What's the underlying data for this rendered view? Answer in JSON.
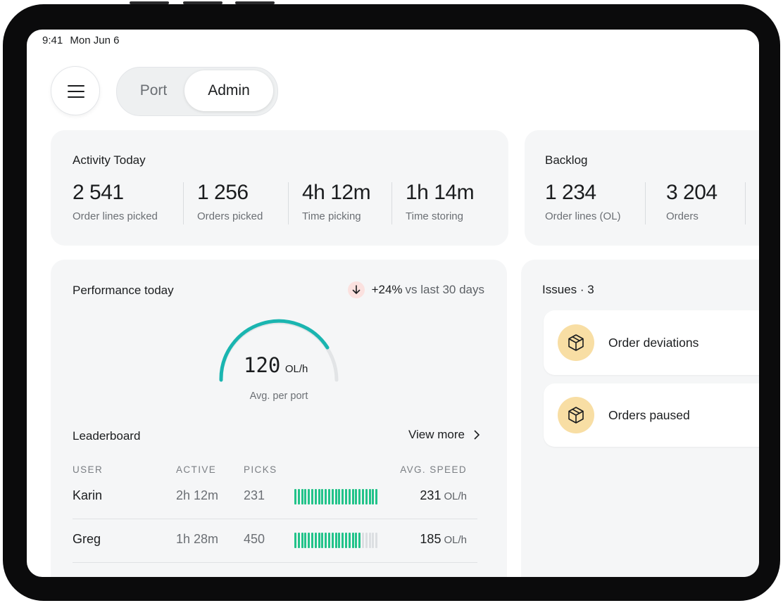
{
  "status_bar": {
    "time": "9:41",
    "date": "Mon Jun 6"
  },
  "tabs": [
    {
      "label": "Port",
      "active": false
    },
    {
      "label": "Admin",
      "active": true
    }
  ],
  "activity": {
    "title": "Activity Today",
    "stats": [
      {
        "value": "2 541",
        "label": "Order lines picked"
      },
      {
        "value": "1 256",
        "label": "Orders picked"
      },
      {
        "value": "4h 12m",
        "label": "Time picking"
      },
      {
        "value": "1h 14m",
        "label": "Time storing"
      }
    ]
  },
  "backlog": {
    "title": "Backlog",
    "stats": [
      {
        "value": "1 234",
        "label": "Order lines (OL)"
      },
      {
        "value": "3 204",
        "label": "Orders"
      }
    ]
  },
  "performance": {
    "title": "Performance today",
    "change": "+24%",
    "comparison": "vs last 30 days",
    "gauge": {
      "value": "120",
      "unit": "OL/h",
      "caption": "Avg. per port"
    }
  },
  "leaderboard": {
    "title": "Leaderboard",
    "link": "View more",
    "columns": [
      "USER",
      "ACTIVE",
      "PICKS",
      "AVG. SPEED"
    ],
    "rows": [
      {
        "user": "Karin",
        "active": "2h 12m",
        "picks": 231,
        "speed": 231,
        "unit": "OL/h"
      },
      {
        "user": "Greg",
        "active": "1h 28m",
        "picks": 450,
        "speed": 185,
        "unit": "OL/h"
      }
    ]
  },
  "issues": {
    "title": "Issues · 3",
    "items": [
      "Order deviations",
      "Orders paused"
    ]
  }
}
